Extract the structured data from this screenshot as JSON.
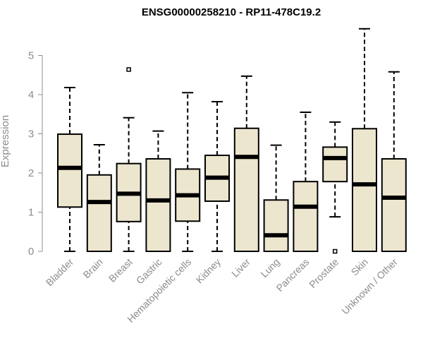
{
  "chart_data": {
    "type": "boxplot",
    "title": "ENSG00000258210 - RP11-478C19.2",
    "xlabel": "",
    "ylabel": "Expression",
    "ylim": [
      0,
      5.7
    ],
    "yticks": [
      0,
      1,
      2,
      3,
      4,
      5
    ],
    "box_fill": "#ede6cf",
    "categories": [
      "Bladder",
      "Brain",
      "Breast",
      "Gastric",
      "Hematopoietic cells",
      "Kidney",
      "Liver",
      "Lung",
      "Pancreas",
      "Prostate",
      "Skin",
      "Unknown / Other"
    ],
    "boxes": [
      {
        "min": 0.0,
        "q1": 1.13,
        "median": 2.13,
        "q3": 2.99,
        "max": 4.18,
        "outliers": []
      },
      {
        "min": 0.0,
        "q1": 0.0,
        "median": 1.26,
        "q3": 1.95,
        "max": 2.72,
        "outliers": []
      },
      {
        "min": 0.0,
        "q1": 0.76,
        "median": 1.47,
        "q3": 2.24,
        "max": 3.41,
        "outliers": [
          4.64
        ]
      },
      {
        "min": 0.0,
        "q1": 0.0,
        "median": 1.3,
        "q3": 2.36,
        "max": 3.07,
        "outliers": []
      },
      {
        "min": 0.0,
        "q1": 0.77,
        "median": 1.43,
        "q3": 2.1,
        "max": 4.05,
        "outliers": []
      },
      {
        "min": 0.0,
        "q1": 1.28,
        "median": 1.88,
        "q3": 2.45,
        "max": 3.82,
        "outliers": []
      },
      {
        "min": 0.0,
        "q1": 0.0,
        "median": 2.41,
        "q3": 3.14,
        "max": 4.47,
        "outliers": []
      },
      {
        "min": 0.0,
        "q1": 0.0,
        "median": 0.41,
        "q3": 1.31,
        "max": 2.71,
        "outliers": []
      },
      {
        "min": 0.0,
        "q1": 0.0,
        "median": 1.14,
        "q3": 1.78,
        "max": 3.55,
        "outliers": []
      },
      {
        "min": 0.88,
        "q1": 1.78,
        "median": 2.38,
        "q3": 2.66,
        "max": 3.3,
        "outliers": [
          0.0
        ]
      },
      {
        "min": 0.0,
        "q1": 0.0,
        "median": 1.71,
        "q3": 3.13,
        "max": 5.68,
        "outliers": []
      },
      {
        "min": 0.0,
        "q1": 0.0,
        "median": 1.37,
        "q3": 2.36,
        "max": 4.58,
        "outliers": []
      }
    ]
  }
}
